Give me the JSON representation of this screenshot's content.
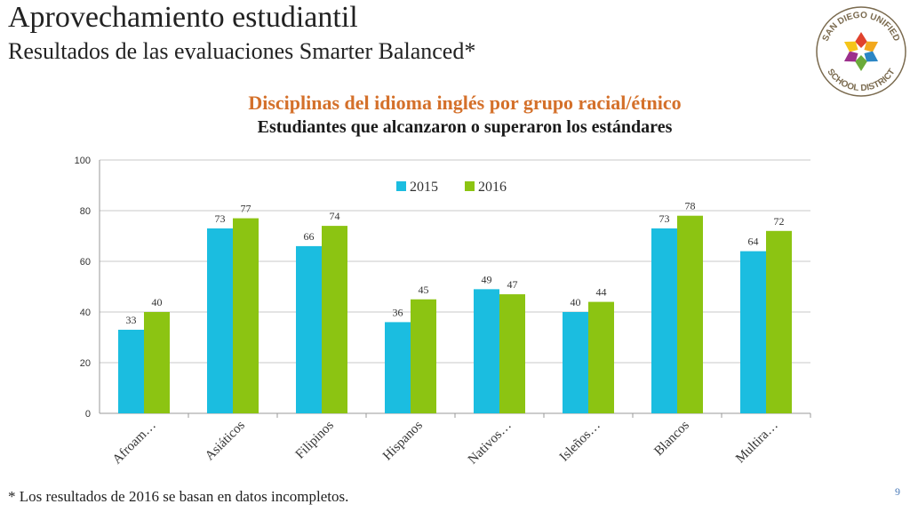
{
  "slide": {
    "title": "Aprovechamiento estudiantil",
    "subtitle": "Resultados de las evaluaciones Smarter Balanced*",
    "footnote": "* Los resultados de 2016 se basan en datos incompletos.",
    "page_number": "9"
  },
  "logo": {
    "text_top": "SAN DIEGO UNIFIED",
    "text_bottom": "SCHOOL DISTRICT",
    "colors": [
      "#e0422d",
      "#f2a81d",
      "#2b86c5",
      "#6aaa3a",
      "#9c2f8c",
      "#f5c518"
    ]
  },
  "colors": {
    "series_2015": "#1bbde0",
    "series_2016": "#8cc412",
    "chart_title": "#d4702a",
    "grid": "#c8c8c8"
  },
  "chart_data": {
    "type": "bar",
    "title": "Disciplinas del idioma inglés por grupo racial/étnico",
    "subtitle": "Estudiantes que alcanzaron o superaron los estándares",
    "categories": [
      "Afroam…",
      "Asiáticos",
      "Filipinos",
      "Hispanos",
      "Nativos…",
      "Isleños…",
      "Blancos",
      "Multira…"
    ],
    "series": [
      {
        "name": "2015",
        "values": [
          33,
          73,
          66,
          36,
          49,
          40,
          73,
          64
        ]
      },
      {
        "name": "2016",
        "values": [
          40,
          77,
          74,
          45,
          47,
          44,
          78,
          72
        ]
      }
    ],
    "ylim": [
      0,
      100
    ],
    "yticks": [
      "0",
      "20",
      "40",
      "60",
      "80",
      "100"
    ],
    "grid": true,
    "legend": "top-center",
    "xlabel": "",
    "ylabel": ""
  }
}
